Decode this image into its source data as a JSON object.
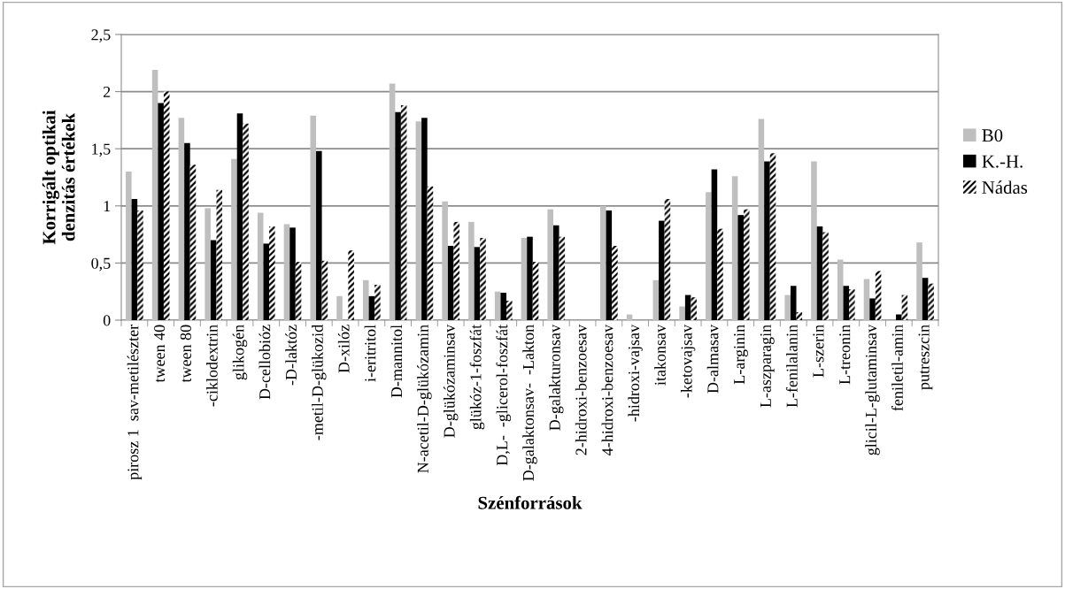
{
  "chart_data": {
    "type": "bar",
    "xlabel": "Szénforrások",
    "ylabel": "Korrigált optikai\ndenzitás értékek",
    "categories": [
      "pirosz 1  sav-metilészter",
      "tween 40",
      "tween 80",
      "-ciklodextrin",
      "glikogén",
      "D-cellobióz",
      "-D-laktóz",
      "-metil-D-glükozid",
      "D-xilóz",
      "i-eritritol",
      "D-mannitol",
      "N-acetil-D-glükózamin",
      "D-glükózaminsav",
      "glükóz-1-foszfát",
      "D,L-  -glicerol-foszfát",
      "D-galaktonsav-  -Lakton",
      "D-galakturonsav",
      "2-hidroxi-benzoesav",
      "4-hidroxi-benzoesav",
      "-hidroxi-vajsav",
      "itakonsav",
      "-ketovajsav",
      "D-almasav",
      "L-arginin",
      "L-aszparagin",
      "L-fenilalanin",
      "L-szerin",
      "L-treonin",
      "glicil-L-glutaminsav",
      "feniletil-amin",
      "putreszcin"
    ],
    "series": [
      {
        "name": "B0",
        "color": "#bfbfbf",
        "values": [
          1.3,
          2.19,
          1.77,
          0.98,
          1.41,
          0.94,
          0.84,
          1.79,
          0.21,
          0.35,
          2.07,
          1.74,
          1.04,
          0.86,
          0.25,
          0.72,
          0.97,
          0,
          1.0,
          0.05,
          0.35,
          0.12,
          1.12,
          1.26,
          1.76,
          0.22,
          1.39,
          0.53,
          0.36,
          0,
          0.68
        ]
      },
      {
        "name": "K.-H.",
        "color": "#000000",
        "values": [
          1.06,
          1.9,
          1.55,
          0.7,
          1.81,
          0.67,
          0.81,
          1.48,
          0,
          0.21,
          1.82,
          1.77,
          0.65,
          0.64,
          0.24,
          0.73,
          0.83,
          0,
          0.96,
          0,
          0.87,
          0.22,
          1.32,
          0.92,
          1.39,
          0.3,
          0.82,
          0.3,
          0.19,
          0.05,
          0.37
        ]
      },
      {
        "name": "Nádas",
        "color": "#000000",
        "values": [
          0.96,
          2.0,
          1.36,
          1.14,
          1.72,
          0.82,
          0.51,
          0.52,
          0.61,
          0.31,
          1.88,
          1.17,
          0.86,
          0.72,
          0.17,
          0.51,
          0.73,
          0,
          0.65,
          0,
          1.06,
          0.2,
          0.8,
          0.97,
          1.46,
          0.07,
          0.77,
          0.27,
          0.43,
          0.22,
          0.32
        ]
      }
    ],
    "ylim": [
      0,
      2.5
    ],
    "yticks": [
      0,
      {
        "value": 0.5,
        "label": "0,5"
      },
      1,
      {
        "value": 1.5,
        "label": "1,5"
      },
      2,
      {
        "value": 2.5,
        "label": "2,5"
      }
    ],
    "grid": "y",
    "legend": "right"
  }
}
